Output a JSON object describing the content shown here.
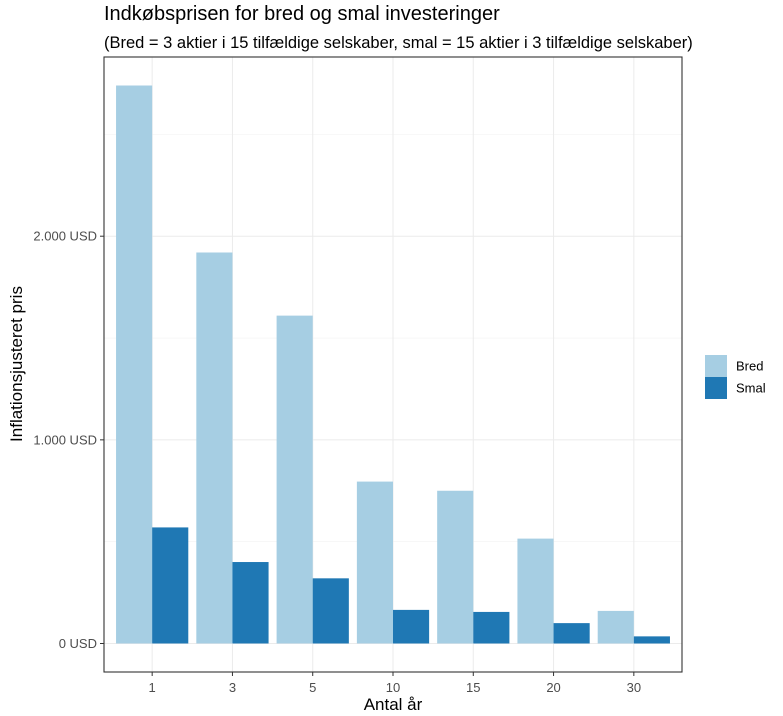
{
  "chart_data": {
    "type": "bar",
    "title": "Indkøbsprisen for bred og smal investeringer",
    "subtitle": "(Bred = 3 aktier i 15 tilfældige selskaber, smal = 15 aktier i 3 tilfældige selskaber)",
    "xlabel": "Antal år",
    "ylabel": "Inflationsjusteret pris",
    "categories": [
      "1",
      "3",
      "5",
      "10",
      "15",
      "20",
      "30"
    ],
    "series": [
      {
        "name": "Bred",
        "color": "#a6cee3",
        "values": [
          2740,
          1920,
          1610,
          795,
          750,
          515,
          160
        ]
      },
      {
        "name": "Smal",
        "color": "#1f78b4",
        "values": [
          570,
          400,
          320,
          165,
          155,
          100,
          35
        ]
      }
    ],
    "ylim": [
      -140,
      2880
    ],
    "yticks": [
      {
        "value": 0,
        "label": "0 USD"
      },
      {
        "value": 1000,
        "label": "1.000 USD"
      },
      {
        "value": 2000,
        "label": "2.000 USD"
      }
    ],
    "yminor": [
      500,
      1500,
      2500
    ],
    "grid": true,
    "legend_position": "right"
  }
}
